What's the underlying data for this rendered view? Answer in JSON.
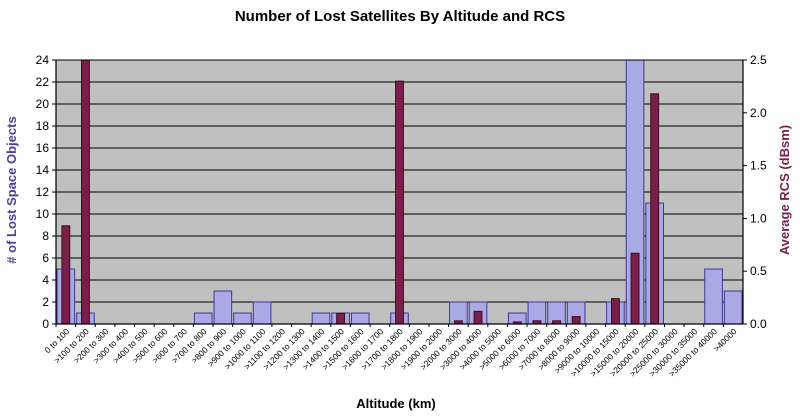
{
  "chart_data": {
    "type": "bar",
    "title": "Number of Lost Satellites By Altitude and RCS",
    "xlabel": "Altitude (km)",
    "ylabel": "# of Lost Space Objects",
    "y2label": "Average RCS (dBsm)",
    "ylim": [
      0,
      24
    ],
    "y2lim": [
      0,
      2.5
    ],
    "yticks": [
      "0",
      "2",
      "4",
      "6",
      "8",
      "10",
      "12",
      "14",
      "16",
      "18",
      "20",
      "22",
      "24"
    ],
    "y2ticks": [
      "0.0",
      "0.5",
      "1.0",
      "1.5",
      "2.0",
      "2.5"
    ],
    "grid": true,
    "categories": [
      "0 to 100",
      ">100 to 200",
      ">200 to 300",
      ">300 to 400",
      ">400 to 500",
      ">500 to 600",
      ">600 to 700",
      ">700 to 800",
      ">800 to 900",
      ">900 to 1000",
      ">1000 to 1100",
      ">1100 to 1200",
      ">1200 to 1300",
      ">1300 to 1400",
      ">1400 to 1500",
      ">1500 to 1600",
      ">1600 to 1700",
      ">1700 to 1800",
      ">1800 to 1900",
      ">1900 to 2000",
      ">2000 to 3000",
      ">3000 to 4000",
      ">4000 to 5000",
      ">5000 to 6000",
      ">6000 to 7000",
      ">7000 to 8000",
      ">8000 to 9000",
      ">9000 to 10000",
      ">10000 to 15000",
      ">15000 to 20000",
      ">20000 to 25000",
      ">25000 to 30000",
      ">30000 to 35000",
      ">35000 to 40000",
      ">40000"
    ],
    "series": [
      {
        "axis": "left",
        "color": "#a9a9e6",
        "values": [
          5,
          1,
          0,
          0,
          0,
          0,
          0,
          1,
          3,
          1,
          2,
          0,
          0,
          1,
          1,
          1,
          0,
          1,
          0,
          0,
          2,
          2,
          0,
          1,
          2,
          2,
          2,
          0,
          2,
          24,
          11,
          0,
          0,
          5,
          3
        ]
      },
      {
        "axis": "right",
        "color": "#7a1f4a",
        "values": [
          0.93,
          2.5,
          0,
          0,
          0,
          0,
          0,
          0,
          0,
          0,
          0,
          0,
          0,
          0,
          0.1,
          0,
          0,
          2.3,
          0,
          0,
          0.03,
          0.12,
          0,
          0.02,
          0.03,
          0.03,
          0.07,
          0,
          0.24,
          0.67,
          2.18,
          0,
          0,
          0,
          0
        ]
      }
    ]
  },
  "colors": {
    "plot_background": "#c0c0c0",
    "gridline": "#000000",
    "left_axis_label": "#4b3f9f",
    "right_axis_label": "#7a1f4a"
  }
}
